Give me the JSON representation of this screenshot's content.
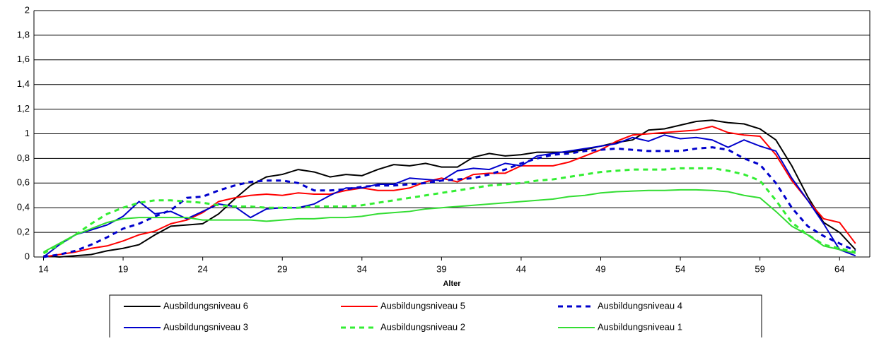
{
  "chart_data": {
    "type": "line",
    "xlabel": "Alter",
    "x": [
      14,
      15,
      16,
      17,
      18,
      19,
      20,
      21,
      22,
      23,
      24,
      25,
      26,
      27,
      28,
      29,
      30,
      31,
      32,
      33,
      34,
      35,
      36,
      37,
      38,
      39,
      40,
      41,
      42,
      43,
      44,
      45,
      46,
      47,
      48,
      49,
      50,
      51,
      52,
      53,
      54,
      55,
      56,
      57,
      58,
      59,
      60,
      61,
      62,
      63,
      64,
      65
    ],
    "xlim": [
      13.4,
      65.9
    ],
    "xticks": [
      14,
      19,
      24,
      29,
      34,
      39,
      44,
      49,
      54,
      59,
      64
    ],
    "ylim": [
      0,
      2
    ],
    "yticks": [
      0,
      {
        "value": 0.2,
        "label": "0,2"
      },
      {
        "value": 0.4,
        "label": "0,4"
      },
      {
        "value": 0.6,
        "label": "0,6"
      },
      {
        "value": 0.8,
        "label": "0,8"
      },
      1,
      {
        "value": 1.2,
        "label": "1,2"
      },
      {
        "value": 1.4,
        "label": "1,4"
      },
      {
        "value": 1.6,
        "label": "1,6"
      },
      {
        "value": 1.8,
        "label": "1,8"
      },
      2
    ],
    "grid": true,
    "legend": "bottom",
    "series": [
      {
        "name": "Ausbildungsniveau 6",
        "color": "#000000",
        "style": "solid",
        "values": [
          0.01,
          0.0,
          0.01,
          0.02,
          0.05,
          0.07,
          0.1,
          0.18,
          0.25,
          0.26,
          0.27,
          0.35,
          0.47,
          0.58,
          0.65,
          0.67,
          0.71,
          0.69,
          0.65,
          0.67,
          0.66,
          0.71,
          0.75,
          0.74,
          0.76,
          0.73,
          0.73,
          0.81,
          0.84,
          0.82,
          0.83,
          0.85,
          0.85,
          0.85,
          0.87,
          0.9,
          0.93,
          0.95,
          1.03,
          1.04,
          1.07,
          1.1,
          1.11,
          1.09,
          1.08,
          1.04,
          0.95,
          0.74,
          0.49,
          0.28,
          0.2,
          0.06
        ]
      },
      {
        "name": "Ausbildungsniveau 5",
        "color": "#ff0000",
        "style": "solid",
        "values": [
          0.0,
          0.02,
          0.04,
          0.07,
          0.09,
          0.13,
          0.18,
          0.21,
          0.27,
          0.3,
          0.36,
          0.45,
          0.48,
          0.5,
          0.51,
          0.5,
          0.52,
          0.51,
          0.51,
          0.54,
          0.56,
          0.54,
          0.54,
          0.56,
          0.61,
          0.64,
          0.61,
          0.67,
          0.68,
          0.68,
          0.74,
          0.74,
          0.74,
          0.77,
          0.82,
          0.87,
          0.94,
          0.99,
          1.0,
          1.01,
          1.02,
          1.03,
          1.06,
          1.01,
          0.99,
          0.98,
          0.83,
          0.62,
          0.46,
          0.31,
          0.28,
          0.11
        ]
      },
      {
        "name": "Ausbildungsniveau 4",
        "color": "#0000cc",
        "style": "dashed",
        "values": [
          0.0,
          0.02,
          0.05,
          0.1,
          0.16,
          0.23,
          0.27,
          0.33,
          0.38,
          0.48,
          0.49,
          0.54,
          0.58,
          0.61,
          0.62,
          0.62,
          0.6,
          0.54,
          0.54,
          0.55,
          0.57,
          0.58,
          0.58,
          0.59,
          0.6,
          0.62,
          0.63,
          0.64,
          0.67,
          0.71,
          0.76,
          0.8,
          0.83,
          0.84,
          0.86,
          0.87,
          0.88,
          0.87,
          0.86,
          0.86,
          0.86,
          0.88,
          0.89,
          0.87,
          0.8,
          0.75,
          0.6,
          0.4,
          0.25,
          0.17,
          0.11,
          0.05
        ]
      },
      {
        "name": "Ausbildungsniveau 3",
        "color": "#0000cc",
        "style": "solid",
        "values": [
          0.0,
          0.1,
          0.18,
          0.22,
          0.26,
          0.33,
          0.45,
          0.35,
          0.37,
          0.31,
          0.37,
          0.43,
          0.41,
          0.32,
          0.39,
          0.4,
          0.4,
          0.43,
          0.5,
          0.56,
          0.56,
          0.59,
          0.59,
          0.64,
          0.63,
          0.62,
          0.7,
          0.72,
          0.71,
          0.76,
          0.74,
          0.82,
          0.84,
          0.86,
          0.88,
          0.9,
          0.92,
          0.97,
          0.94,
          0.99,
          0.96,
          0.97,
          0.95,
          0.89,
          0.95,
          0.9,
          0.86,
          0.64,
          0.46,
          0.27,
          0.06,
          0.01
        ]
      },
      {
        "name": "Ausbildungsniveau 2",
        "color": "#33ee33",
        "style": "dashed",
        "values": [
          0.03,
          0.1,
          0.18,
          0.27,
          0.35,
          0.4,
          0.44,
          0.46,
          0.46,
          0.45,
          0.44,
          0.42,
          0.41,
          0.41,
          0.4,
          0.4,
          0.4,
          0.41,
          0.41,
          0.41,
          0.42,
          0.44,
          0.46,
          0.48,
          0.5,
          0.52,
          0.54,
          0.56,
          0.58,
          0.59,
          0.6,
          0.62,
          0.63,
          0.65,
          0.67,
          0.69,
          0.7,
          0.71,
          0.71,
          0.71,
          0.72,
          0.72,
          0.72,
          0.7,
          0.67,
          0.62,
          0.46,
          0.28,
          0.18,
          0.1,
          0.07,
          0.04
        ]
      },
      {
        "name": "Ausbildungsniveau 1",
        "color": "#33dd33",
        "style": "solid",
        "values": [
          0.04,
          0.11,
          0.18,
          0.23,
          0.28,
          0.31,
          0.32,
          0.32,
          0.32,
          0.32,
          0.3,
          0.3,
          0.3,
          0.3,
          0.29,
          0.3,
          0.31,
          0.31,
          0.32,
          0.32,
          0.33,
          0.35,
          0.36,
          0.37,
          0.39,
          0.4,
          0.41,
          0.42,
          0.43,
          0.44,
          0.45,
          0.46,
          0.47,
          0.49,
          0.5,
          0.52,
          0.53,
          0.535,
          0.54,
          0.54,
          0.545,
          0.545,
          0.54,
          0.53,
          0.5,
          0.48,
          0.37,
          0.25,
          0.18,
          0.09,
          0.06,
          0.03
        ]
      }
    ]
  }
}
